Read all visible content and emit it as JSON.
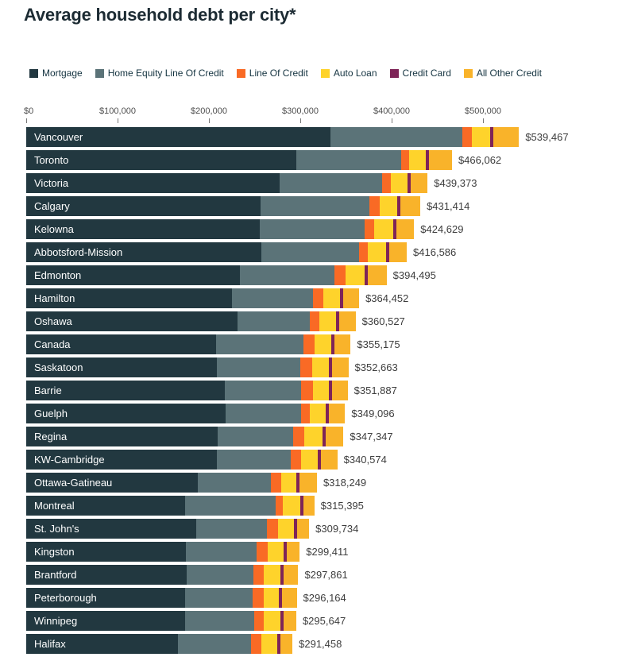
{
  "title": "Average household debt per city*",
  "colors": {
    "background": "#ffffff",
    "title_text": "#1c2b33",
    "axis_text": "#4d4d4d",
    "value_text": "#3d3d3d",
    "city_text": "#ffffff"
  },
  "chart_data": {
    "type": "bar",
    "orientation": "horizontal",
    "title": "Average household debt per city*",
    "xlabel": "",
    "ylabel": "",
    "grid": false,
    "legend_position": "top",
    "xlim": [
      0,
      560000
    ],
    "axis": {
      "tick_labels": [
        "$0",
        "$100,000",
        "$200,000",
        "$300,000",
        "$400,000",
        "$500,000"
      ],
      "tick_values": [
        0,
        100000,
        200000,
        300000,
        400000,
        500000
      ]
    },
    "categories": [
      "Vancouver",
      "Toronto",
      "Victoria",
      "Calgary",
      "Kelowna",
      "Abbotsford-Mission",
      "Edmonton",
      "Hamilton",
      "Oshawa",
      "Canada",
      "Saskatoon",
      "Barrie",
      "Guelph",
      "Regina",
      "KW-Cambridge",
      "Ottawa-Gatineau",
      "Montreal",
      "St. John's",
      "Kingston",
      "Brantford",
      "Peterborough",
      "Winnipeg",
      "Halifax"
    ],
    "series": [
      {
        "name": "Mortgage",
        "color": "#223840",
        "values": [
          333000,
          295900,
          277100,
          256900,
          255400,
          257500,
          233600,
          225400,
          231200,
          207800,
          208700,
          217600,
          218500,
          209600,
          208400,
          187700,
          173500,
          186200,
          175200,
          175800,
          173500,
          174300,
          166500
        ]
      },
      {
        "name": "Home Equity Line Of Credit",
        "color": "#5b7378",
        "values": [
          144600,
          114200,
          112300,
          119000,
          115400,
          107000,
          103700,
          88200,
          79300,
          95700,
          91700,
          83600,
          82000,
          82500,
          81300,
          80500,
          99400,
          77400,
          77100,
          72700,
          74500,
          75100,
          79200
        ]
      },
      {
        "name": "Line Of Credit",
        "color": "#f96a25",
        "values": [
          10100,
          8900,
          10000,
          10900,
          10400,
          9500,
          12500,
          11500,
          10700,
          11800,
          13000,
          12400,
          9900,
          11900,
          11000,
          10900,
          7800,
          12100,
          11900,
          11600,
          11600,
          11000,
          11600
        ]
      },
      {
        "name": "Auto Loan",
        "color": "#fed32b",
        "values": [
          20500,
          18200,
          18200,
          19700,
          20800,
          19900,
          21000,
          18500,
          18200,
          18200,
          17600,
          17300,
          17300,
          20200,
          18200,
          16500,
          19100,
          17300,
          17300,
          17800,
          17300,
          17800,
          17300
        ]
      },
      {
        "name": "Credit Card",
        "color": "#7e2458",
        "values": [
          3500,
          3500,
          3500,
          3500,
          3500,
          3500,
          3500,
          3500,
          3500,
          3500,
          3500,
          3500,
          3500,
          3500,
          3500,
          3500,
          3500,
          3500,
          3500,
          3500,
          3500,
          3500,
          3500
        ]
      },
      {
        "name": "All Other Credit",
        "color": "#f9b32a",
        "values": [
          27767,
          25362,
          18273,
          21414,
          19129,
          19186,
          20195,
          17352,
          17627,
          18175,
          18163,
          17487,
          17896,
          19647,
          18174,
          19149,
          12095,
          13234,
          14411,
          16461,
          15764,
          13947,
          13358
        ]
      }
    ],
    "totals": [
      539467,
      466062,
      439373,
      431414,
      424629,
      416586,
      394495,
      364452,
      360527,
      355175,
      352663,
      351887,
      349096,
      347347,
      340574,
      318249,
      315395,
      309734,
      299411,
      297861,
      296164,
      295647,
      291458
    ],
    "total_labels": [
      "$539,467",
      "$466,062",
      "$439,373",
      "$431,414",
      "$424,629",
      "$416,586",
      "$394,495",
      "$364,452",
      "$360,527",
      "$355,175",
      "$352,663",
      "$351,887",
      "$349,096",
      "$347,347",
      "$340,574",
      "$318,249",
      "$315,395",
      "$309,734",
      "$299,411",
      "$297,861",
      "$296,164",
      "$295,647",
      "$291,458"
    ]
  }
}
